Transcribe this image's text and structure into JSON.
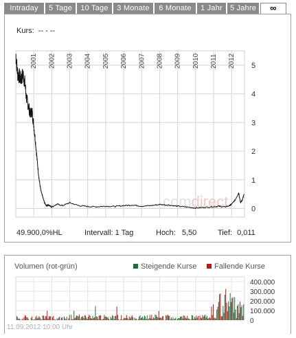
{
  "tabs": [
    {
      "label": "Intraday",
      "width": 60
    },
    {
      "label": "5 Tage",
      "width": 46
    },
    {
      "label": "10 Tage",
      "width": 53
    },
    {
      "label": "3 Monate",
      "width": 60
    },
    {
      "label": "6 Monate",
      "width": 62
    },
    {
      "label": "1 Jahr",
      "width": 44
    },
    {
      "label": "5 Jahre",
      "width": 48
    },
    {
      "label": "∞",
      "width": 38,
      "active": true
    }
  ],
  "quote": {
    "label": "Kurs:",
    "value": "-- - --"
  },
  "stats": {
    "exchange": "49.900,0%HL",
    "interval_label": "Intervall:",
    "interval_value": "1 Tag",
    "high_label": "Hoch:",
    "high_value": "5,50",
    "low_label": "Tief:",
    "low_value": "0,011"
  },
  "watermark": {
    "part1": "com",
    "part2": "direct"
  },
  "volume": {
    "title": "Volumen (rot-grün)",
    "legend_up": "Steigende Kurse",
    "legend_down": "Fallende Kurse",
    "color_up": "#1e6e3c",
    "color_down": "#c01818",
    "y_ticks": [
      "400.000",
      "300.000",
      "200.000",
      "100.000",
      "0"
    ],
    "date": "11.09.2012 10:00 Uhr"
  },
  "chart_data": {
    "type": "line",
    "x_ticks": [
      "2001",
      "2002",
      "2003",
      "2004",
      "2005",
      "2006",
      "2007",
      "2008",
      "2009",
      "2010",
      "2011",
      "2012"
    ],
    "y_ticks": [
      0,
      1,
      2,
      3,
      4,
      5
    ],
    "ylim": [
      -0.3,
      5.5
    ],
    "xlim": [
      2000.0,
      2012.72
    ],
    "series": [
      {
        "x": [
          2000.0,
          2000.1,
          2000.2,
          2000.3,
          2000.4,
          2000.5,
          2000.6,
          2000.7,
          2000.8,
          2000.9,
          2001.0,
          2001.1,
          2001.2,
          2001.3,
          2001.4,
          2001.5,
          2001.6,
          2001.7,
          2001.8,
          2001.9,
          2002.0,
          2002.3,
          2002.6,
          2003.0,
          2003.5,
          2004.0,
          2004.5,
          2005.0,
          2005.5,
          2006.0,
          2006.5,
          2007.0,
          2007.5,
          2008.0,
          2008.5,
          2009.0,
          2009.5,
          2010.0,
          2010.5,
          2011.0,
          2011.3,
          2011.6,
          2011.9,
          2012.0,
          2012.2,
          2012.4,
          2012.5,
          2012.6,
          2012.7
        ],
        "values": [
          5.4,
          4.7,
          4.6,
          4.5,
          4.7,
          4.4,
          3.8,
          3.6,
          3.3,
          3.4,
          2.9,
          2.3,
          1.6,
          1.0,
          0.6,
          0.4,
          0.2,
          0.1,
          0.12,
          0.1,
          0.05,
          0.15,
          0.1,
          0.2,
          0.1,
          0.07,
          0.06,
          0.08,
          0.07,
          0.1,
          0.12,
          0.08,
          0.1,
          0.14,
          0.12,
          0.08,
          0.05,
          0.02,
          0.04,
          0.06,
          0.08,
          0.05,
          0.1,
          0.15,
          0.3,
          0.55,
          0.2,
          0.3,
          0.5
        ]
      }
    ]
  }
}
